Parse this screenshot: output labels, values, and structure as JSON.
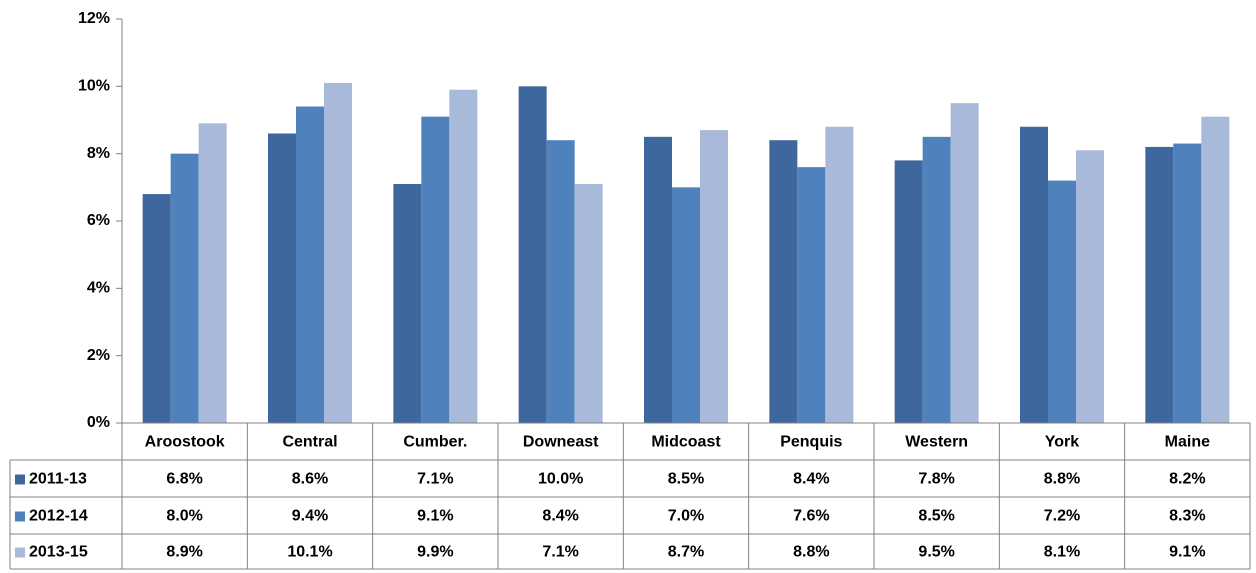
{
  "chart_data": {
    "type": "bar",
    "categories": [
      "Aroostook",
      "Central",
      "Cumber.",
      "Downeast",
      "Midcoast",
      "Penquis",
      "Western",
      "York",
      "Maine"
    ],
    "series": [
      {
        "name": "2011-13",
        "color": "#3e689d",
        "values": [
          6.8,
          8.6,
          7.1,
          10.0,
          8.5,
          8.4,
          7.8,
          8.8,
          8.2
        ],
        "value_labels": [
          "6.8%",
          "8.6%",
          "7.1%",
          "10.0%",
          "8.5%",
          "8.4%",
          "7.8%",
          "8.8%",
          "8.2%"
        ]
      },
      {
        "name": "2012-14",
        "color": "#4f81bd",
        "values": [
          8.0,
          9.4,
          9.1,
          8.4,
          7.0,
          7.6,
          8.5,
          7.2,
          8.3
        ],
        "value_labels": [
          "8.0%",
          "9.4%",
          "9.1%",
          "8.4%",
          "7.0%",
          "7.6%",
          "8.5%",
          "7.2%",
          "8.3%"
        ]
      },
      {
        "name": "2013-15",
        "color": "#a9b9d9",
        "values": [
          8.9,
          10.1,
          9.9,
          7.1,
          8.7,
          8.8,
          9.5,
          8.1,
          9.1
        ],
        "value_labels": [
          "8.9%",
          "10.1%",
          "9.9%",
          "7.1%",
          "8.7%",
          "8.8%",
          "9.5%",
          "8.1%",
          "9.1%"
        ]
      }
    ],
    "ylim": [
      0,
      12
    ],
    "yticks": [
      {
        "value": 0,
        "label": "0%"
      },
      {
        "value": 2,
        "label": "2%"
      },
      {
        "value": 4,
        "label": "4%"
      },
      {
        "value": 6,
        "label": "6%"
      },
      {
        "value": 8,
        "label": "8%"
      },
      {
        "value": 10,
        "label": "10%"
      },
      {
        "value": 12,
        "label": "12%"
      }
    ],
    "grid": false
  }
}
